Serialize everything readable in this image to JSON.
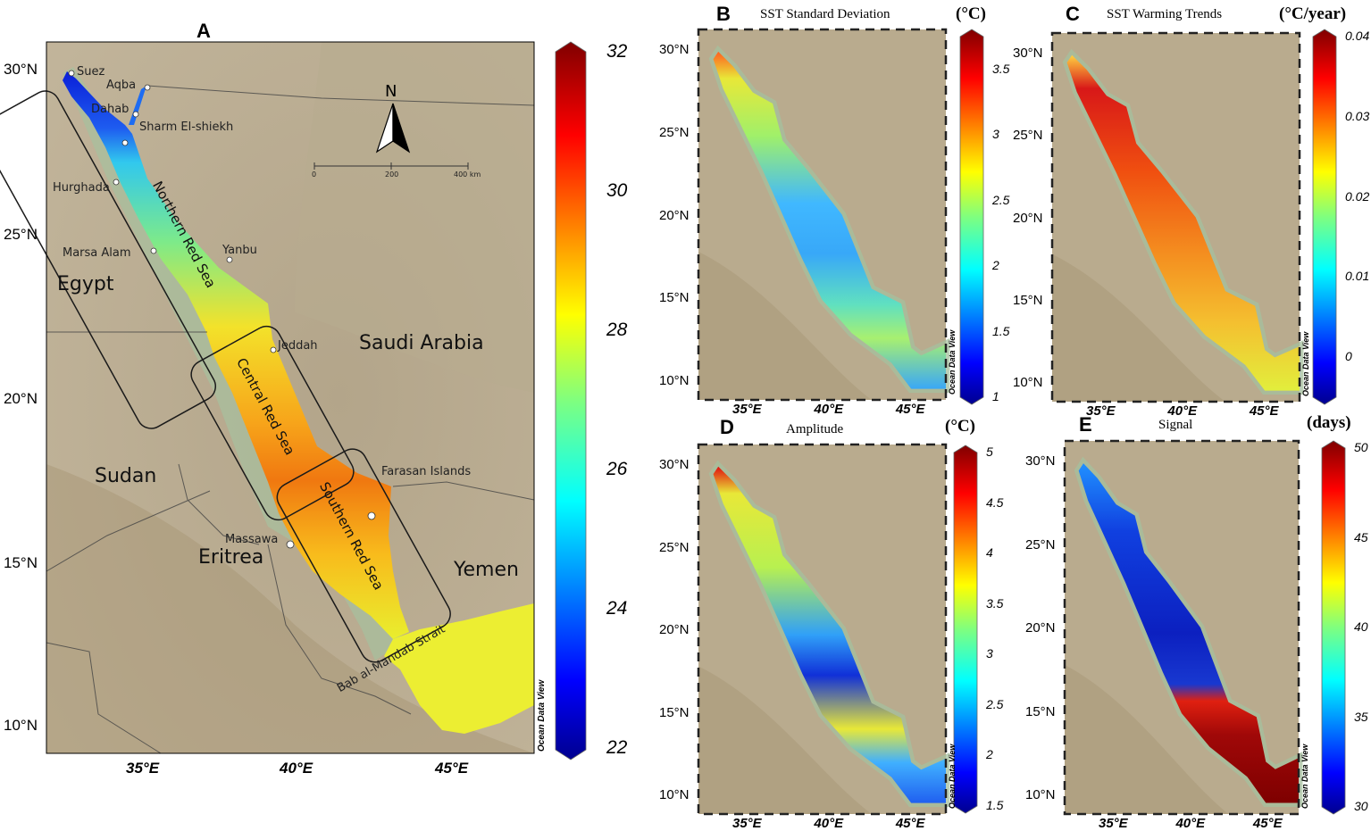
{
  "panel_a": {
    "letter": "A",
    "countries": [
      "Egypt",
      "Saudi Arabia",
      "Sudan",
      "Eritrea",
      "Yemen"
    ],
    "places": [
      "Suez",
      "Aqba",
      "Dahab",
      "Sharm El-shiekh",
      "Hurghada",
      "Marsa Alam",
      "Yanbu",
      "Jeddah",
      "Farasan Islands",
      "Massawa",
      "Bab al-Mandab Strait"
    ],
    "regions": [
      "Northern Red Sea",
      "Central Red Sea",
      "Southern Red Sea"
    ],
    "north": "N",
    "scale_ticks": [
      "0",
      "200",
      "400 km"
    ],
    "lat_labels": [
      "30°N",
      "25°N",
      "20°N",
      "15°N",
      "10°N"
    ],
    "lon_labels": [
      "35°E",
      "40°E",
      "45°E"
    ],
    "odv": "Ocean Data View",
    "colorbar": {
      "min": 22,
      "max": 32,
      "ticks": [
        "32",
        "30",
        "28",
        "26",
        "24",
        "22"
      ]
    }
  },
  "panel_b": {
    "letter": "B",
    "title": "SST Standard Deviation",
    "unit": "(°C)",
    "colorbar": {
      "min": 1,
      "max": 3.75,
      "ticks": [
        "3.5",
        "3",
        "2.5",
        "2",
        "1.5",
        "1"
      ]
    }
  },
  "panel_c": {
    "letter": "C",
    "title": "SST Warming Trends",
    "unit": "(°C/year)",
    "colorbar": {
      "min": -0.005,
      "max": 0.04,
      "ticks": [
        "0.04",
        "0.03",
        "0.02",
        "0.01",
        "0"
      ]
    }
  },
  "panel_d": {
    "letter": "D",
    "title": "Amplitude",
    "unit": "(°C)",
    "colorbar": {
      "min": 1.5,
      "max": 5,
      "ticks": [
        "5",
        "4.5",
        "4",
        "3.5",
        "3",
        "2.5",
        "2",
        "1.5"
      ]
    }
  },
  "panel_e": {
    "letter": "E",
    "title": "Signal",
    "unit": "(days)",
    "colorbar": {
      "min": 30,
      "max": 50,
      "ticks": [
        "50",
        "45",
        "40",
        "35",
        "30"
      ]
    }
  },
  "small_lat_labels": [
    "30°N",
    "25°N",
    "20°N",
    "15°N",
    "10°N"
  ],
  "small_lon_labels": [
    "35°E",
    "40°E",
    "45°E"
  ],
  "colors": {
    "land": "#b9ab8e",
    "land_dark": "#9c8c73",
    "coast_green": "#9fb895",
    "jet_low": "#00008f",
    "jet_high": "#800000"
  }
}
